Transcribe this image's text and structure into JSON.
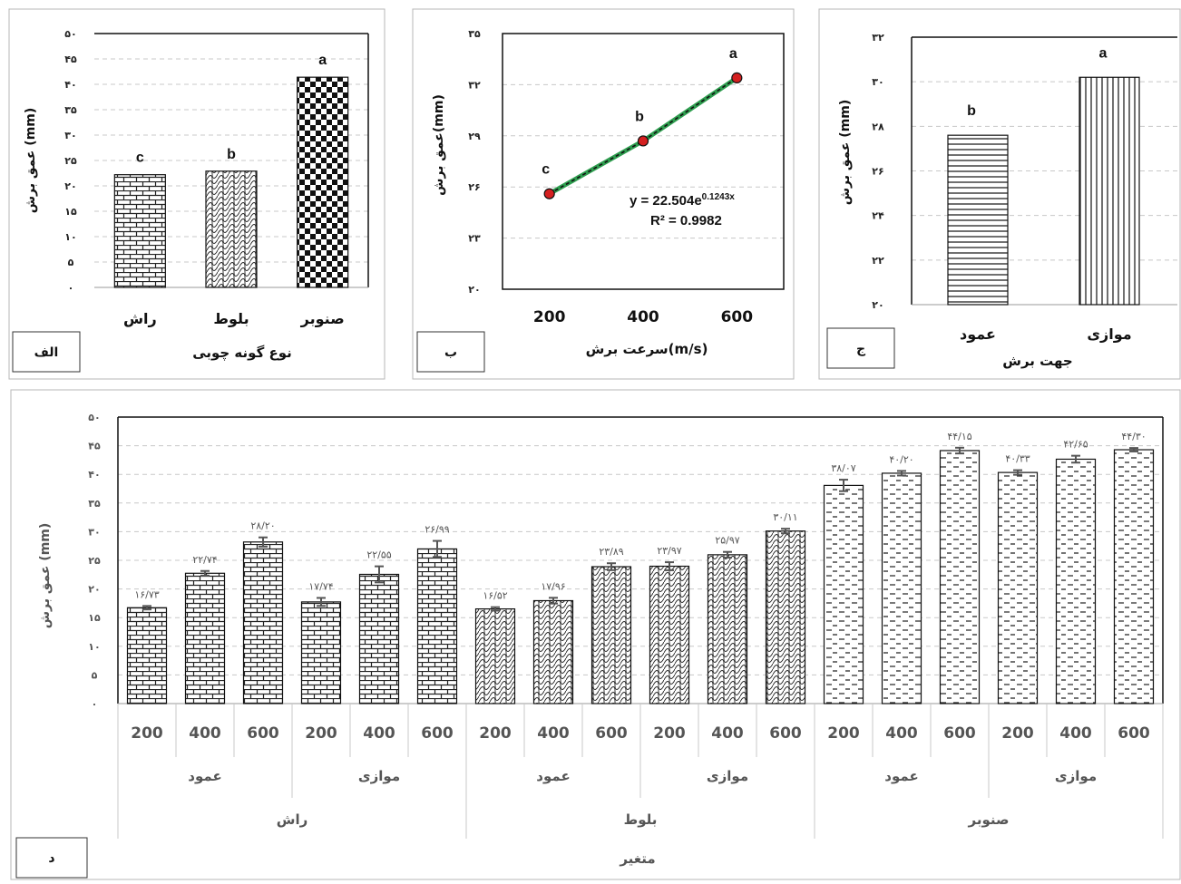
{
  "charts": [
    {
      "type": "bar",
      "panel_label": "الف",
      "xlabel": "نوع گونه چوبی",
      "ylabel": "عمق برش (mm)",
      "categories": [
        "راش",
        "بلوط",
        "صنوبر"
      ],
      "values": [
        22.2,
        22.9,
        41.4
      ],
      "letters": [
        "c",
        "b",
        "a"
      ],
      "ylim": [
        0,
        50
      ],
      "yticks": [
        "۰",
        "۵",
        "۱۰",
        "۱۵",
        "۲۰",
        "۲۵",
        "۳۰",
        "۳۵",
        "۴۰",
        "۴۵",
        "۵۰"
      ],
      "grid": true
    },
    {
      "type": "line",
      "panel_label": "ب",
      "xlabel": "سرعت برش(m/s)",
      "ylabel": "عمق برش(mm)",
      "x": [
        200,
        400,
        600
      ],
      "values": [
        25.6,
        28.7,
        32.4
      ],
      "letters": [
        "c",
        "b",
        "a"
      ],
      "ylim": [
        20,
        35
      ],
      "yticks": [
        "۲۰",
        "۲۳",
        "۲۶",
        "۲۹",
        "۳۲",
        "۳۵"
      ],
      "xticks": [
        "200",
        "400",
        "600"
      ],
      "trendline": {
        "equation": "y = 22.504e",
        "exponent": "0.1243x",
        "r2": "R² = 0.9982"
      },
      "grid": true
    },
    {
      "type": "bar",
      "panel_label": "ج",
      "xlabel": "جهت برش",
      "ylabel": "عمق برش (mm)",
      "categories": [
        "عمود",
        "موازی"
      ],
      "values": [
        27.6,
        30.2
      ],
      "letters": [
        "b",
        "a"
      ],
      "ylim": [
        20,
        32
      ],
      "yticks": [
        "۲۰",
        "۲۲",
        "۲۴",
        "۲۶",
        "۲۸",
        "۳۰",
        "۳۲"
      ],
      "grid": true
    },
    {
      "type": "bar",
      "panel_label": "د",
      "xlabel": "متغیر",
      "ylabel": "عمق برش (mm)",
      "ylim": [
        0,
        50
      ],
      "yticks": [
        "۰",
        "۵",
        "۱۰",
        "۱۵",
        "۲۰",
        "۲۵",
        "۳۰",
        "۳۵",
        "۴۰",
        "۴۵",
        "۵۰"
      ],
      "speeds": [
        "200",
        "400",
        "600",
        "200",
        "400",
        "600",
        "200",
        "400",
        "600",
        "200",
        "400",
        "600",
        "200",
        "400",
        "600",
        "200",
        "400",
        "600"
      ],
      "directions": [
        "عمود",
        "موازی",
        "عمود",
        "موازی",
        "عمود",
        "موازی"
      ],
      "species": [
        "راش",
        "بلوط",
        "صنوبر"
      ],
      "values": [
        16.73,
        22.74,
        28.2,
        17.74,
        22.55,
        26.99,
        16.52,
        17.96,
        23.89,
        23.97,
        25.97,
        30.11,
        38.07,
        40.2,
        44.15,
        40.33,
        42.65,
        44.3
      ],
      "errors": [
        0.3,
        0.4,
        0.8,
        0.7,
        1.4,
        1.4,
        0.3,
        0.5,
        0.6,
        0.7,
        0.5,
        0.4,
        1.0,
        0.4,
        0.5,
        0.4,
        0.6,
        0.3
      ],
      "value_labels": [
        "۱۶/۷۳",
        "۲۲/۷۴",
        "۲۸/۲۰",
        "۱۷/۷۴",
        "۲۲/۵۵",
        "۲۶/۹۹",
        "۱۶/۵۲",
        "۱۷/۹۶",
        "۲۳/۸۹",
        "۲۳/۹۷",
        "۲۵/۹۷",
        "۳۰/۱۱",
        "۳۸/۰۷",
        "۴۰/۲۰",
        "۴۴/۱۵",
        "۴۰/۳۳",
        "۴۲/۶۵",
        "۴۴/۳۰"
      ],
      "grid": true
    }
  ],
  "colors": {
    "frame": "#b7b7b7",
    "grid": "#c8c8c8",
    "bar_stroke": "#111111",
    "trend": "#2e9e4f",
    "marker": "#d42020"
  }
}
